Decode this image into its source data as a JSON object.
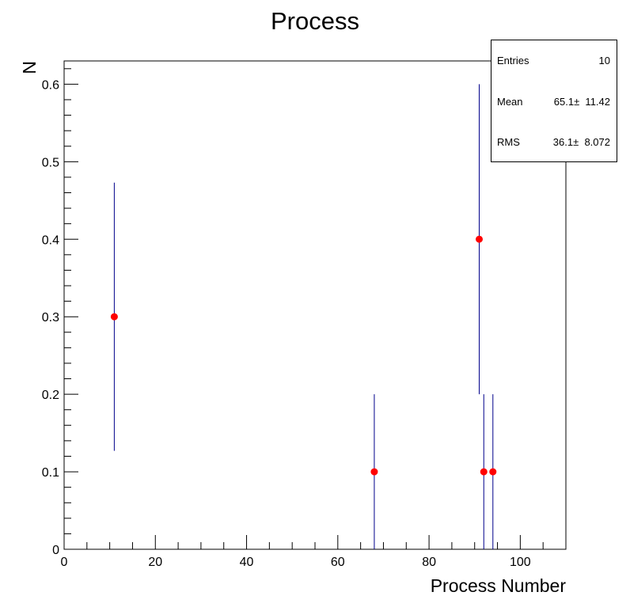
{
  "chart_data": {
    "type": "scatter",
    "title": "Process",
    "xlabel": "Process Number",
    "ylabel": "N",
    "xlim": [
      0,
      110
    ],
    "ylim": [
      0,
      0.63
    ],
    "x_ticks": [
      0,
      20,
      40,
      60,
      80,
      100
    ],
    "x_tick_labels": [
      "0",
      "20",
      "40",
      "60",
      "80",
      "100"
    ],
    "y_ticks": [
      0,
      0.1,
      0.2,
      0.3,
      0.4,
      0.5,
      0.6
    ],
    "y_tick_labels": [
      "0",
      "0.1",
      "0.2",
      "0.3",
      "0.4",
      "0.5",
      "0.6"
    ],
    "grid": false,
    "legend": "none",
    "marker_color": "#ff0000",
    "error_bar_color": "#00008b",
    "points": [
      {
        "x": 11,
        "y": 0.3,
        "err": 0.173
      },
      {
        "x": 68,
        "y": 0.1,
        "err": 0.1
      },
      {
        "x": 91,
        "y": 0.4,
        "err": 0.2
      },
      {
        "x": 92,
        "y": 0.1,
        "err": 0.1
      },
      {
        "x": 94,
        "y": 0.1,
        "err": 0.1
      }
    ],
    "stats_box": {
      "rows": [
        {
          "label": "Entries",
          "value": "10"
        },
        {
          "label": "Mean",
          "value": "65.1±  11.42"
        },
        {
          "label": "RMS",
          "value": "36.1±  8.072"
        }
      ]
    }
  }
}
